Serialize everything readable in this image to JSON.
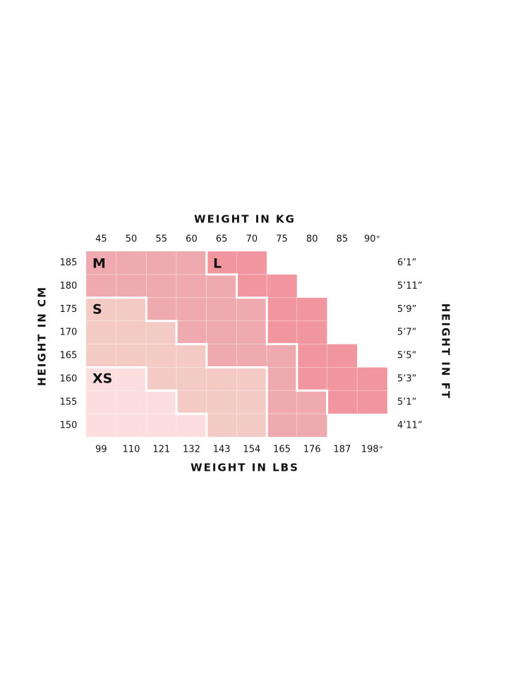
{
  "axes": {
    "top_title": "WEIGHT IN KG",
    "bottom_title": "WEIGHT IN LBS",
    "left_title": "HEIGHT IN CM",
    "right_title": "HEIGHT IN FT",
    "kg": [
      "45",
      "50",
      "55",
      "60",
      "65",
      "70",
      "75",
      "80",
      "85",
      "90⁺"
    ],
    "lbs": [
      "99",
      "110",
      "121",
      "132",
      "143",
      "154",
      "165",
      "176",
      "187",
      "198⁺"
    ],
    "cm": [
      "185",
      "180",
      "175",
      "170",
      "165",
      "160",
      "155",
      "150"
    ],
    "ft": [
      "6’1”",
      "5’11”",
      "5’9”",
      "5’7”",
      "5’5”",
      "5’3”",
      "5’1”",
      "4’11”"
    ]
  },
  "sizes": [
    "M",
    "L",
    "S",
    "XS"
  ]
}
